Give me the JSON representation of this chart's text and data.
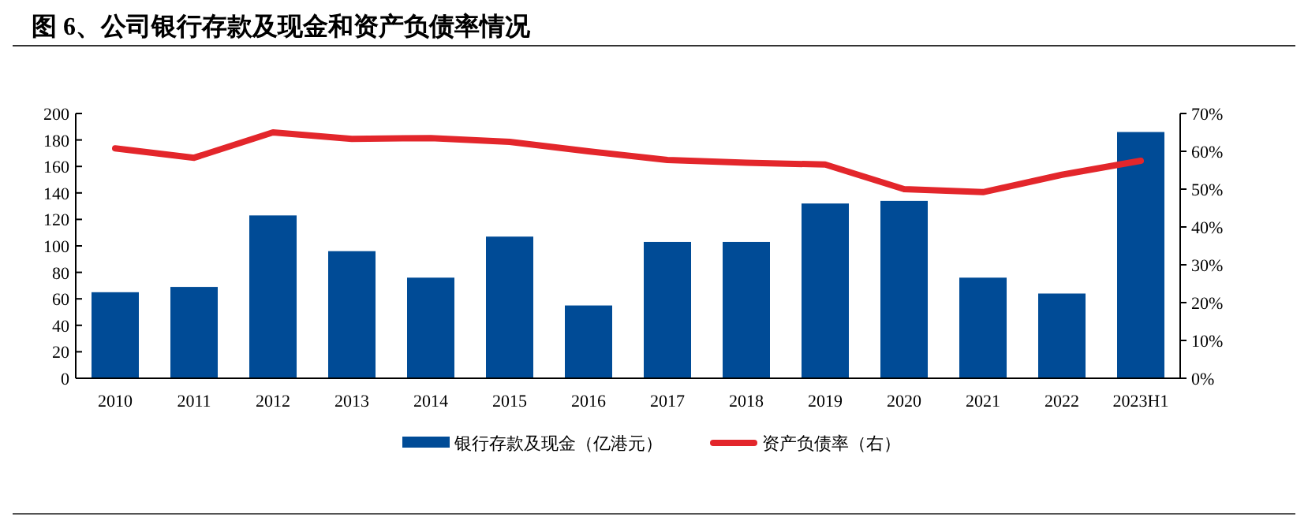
{
  "chart_data": {
    "type": "bar",
    "title": "图 6、公司银行存款及现金和资产负债率情况",
    "categories": [
      "2010",
      "2011",
      "2012",
      "2013",
      "2014",
      "2015",
      "2016",
      "2017",
      "2018",
      "2019",
      "2020",
      "2021",
      "2022",
      "2023H1"
    ],
    "series": [
      {
        "name": "银行存款及现金（亿港元）",
        "color": "#004b96",
        "values": [
          65,
          69,
          123,
          96,
          76,
          107,
          55,
          103,
          103,
          132,
          134,
          76,
          64,
          186
        ]
      },
      {
        "name": "资产负债率（右）",
        "type": "line",
        "axis": "y2",
        "color": "#e3262b",
        "values": [
          60.8,
          58.3,
          65,
          63.3,
          63.5,
          62.5,
          60,
          57.7,
          57,
          56.5,
          50,
          49.2,
          53.8,
          57.5
        ]
      }
    ],
    "ylim": [
      0,
      200
    ],
    "yticks": [
      0,
      20,
      40,
      60,
      80,
      100,
      120,
      140,
      160,
      180,
      200
    ],
    "y2lim": [
      0,
      70
    ],
    "y2ticks": [
      {
        "value": 0,
        "label": "0%"
      },
      {
        "value": 10,
        "label": "10%"
      },
      {
        "value": 20,
        "label": "20%"
      },
      {
        "value": 30,
        "label": "30%"
      },
      {
        "value": 40,
        "label": "40%"
      },
      {
        "value": 50,
        "label": "50%"
      },
      {
        "value": 60,
        "label": "60%"
      },
      {
        "value": 70,
        "label": "70%"
      }
    ],
    "legend": "bottom",
    "grid": false,
    "marker": "none"
  }
}
